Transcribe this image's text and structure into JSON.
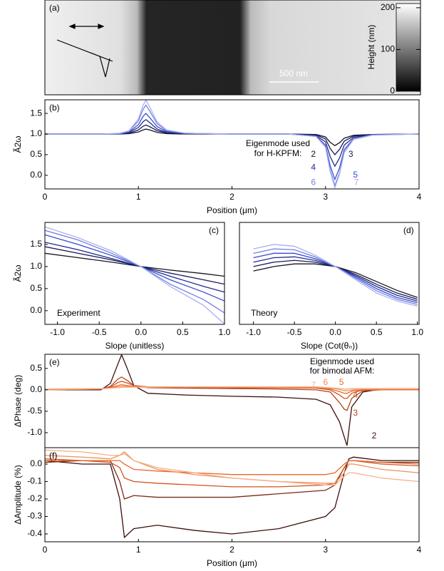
{
  "chart_data": [
    {
      "type": "image",
      "panel_label": "(a)",
      "colorbar_label": "Height (nm)",
      "clim": [
        0,
        210
      ],
      "cticks": [
        0,
        100,
        200
      ],
      "scale_bar": "500 nm"
    },
    {
      "type": "line",
      "panel_label": "(b)",
      "ylabel": "Ã2ω",
      "xlabel": "Position (μm)",
      "annotation": [
        "Eigenmode used",
        "for H-KPFM:"
      ],
      "xlim": [
        0,
        4
      ],
      "ylim": [
        -0.33,
        1.83
      ],
      "xticks": [
        0,
        1,
        2,
        3,
        4
      ],
      "yticks": [
        {
          "value": 0,
          "label": "0.0"
        },
        0.5,
        {
          "value": 1,
          "label": "1.0"
        },
        1.5
      ],
      "x": [
        0,
        0.6,
        0.8,
        0.9,
        1.0,
        1.05,
        1.08,
        1.12,
        1.2,
        1.3,
        1.5,
        2.0,
        2.6,
        2.9,
        3.0,
        3.05,
        3.1,
        3.15,
        3.2,
        3.3,
        3.5,
        4.0
      ],
      "series": [
        {
          "name": "2",
          "color": "#15151f",
          "values": [
            1,
            1,
            1,
            1.01,
            1.05,
            1.1,
            1.12,
            1.1,
            1.04,
            1.01,
            1,
            1,
            1,
            0.99,
            0.93,
            0.8,
            0.72,
            0.79,
            0.9,
            0.97,
            0.99,
            1
          ]
        },
        {
          "name": "3",
          "color": "#1a1a5e",
          "values": [
            1,
            1,
            1,
            1.02,
            1.1,
            1.19,
            1.22,
            1.18,
            1.08,
            1.03,
            1.01,
            1,
            1,
            0.98,
            0.88,
            0.65,
            0.5,
            0.63,
            0.83,
            0.95,
            0.99,
            1
          ]
        },
        {
          "name": "4",
          "color": "#1f2a8c",
          "values": [
            1,
            1,
            1.01,
            1.04,
            1.16,
            1.3,
            1.35,
            1.28,
            1.12,
            1.04,
            1.01,
            1,
            1,
            0.96,
            0.81,
            0.45,
            0.22,
            0.42,
            0.73,
            0.92,
            0.98,
            1
          ]
        },
        {
          "name": "5",
          "color": "#3a4ad0",
          "values": [
            1,
            1,
            1.01,
            1.05,
            1.23,
            1.43,
            1.5,
            1.4,
            1.18,
            1.06,
            1.02,
            1,
            1,
            0.95,
            0.73,
            0.23,
            -0.1,
            0.18,
            0.62,
            0.89,
            0.98,
            1
          ]
        },
        {
          "name": "6",
          "color": "#7080e0",
          "values": [
            1,
            1,
            1.01,
            1.07,
            1.32,
            1.6,
            1.7,
            1.56,
            1.25,
            1.08,
            1.02,
            1,
            1,
            0.94,
            0.69,
            0.13,
            -0.25,
            0.06,
            0.56,
            0.88,
            0.98,
            1
          ]
        },
        {
          "name": "7",
          "color": "#a8b0ee",
          "values": [
            1,
            1,
            1.02,
            1.08,
            1.37,
            1.7,
            1.82,
            1.66,
            1.29,
            1.1,
            1.02,
            1,
            1,
            0.94,
            0.68,
            0.09,
            -0.3,
            0.03,
            0.55,
            0.87,
            0.97,
            1
          ]
        }
      ]
    },
    {
      "type": "line",
      "panel_label": "(c)",
      "ylabel": "Ã2ω",
      "xlabel": "Slope (unitless)",
      "annotation": [
        "Experiment"
      ],
      "xlim": [
        -1.15,
        1.0
      ],
      "ylim": [
        -0.31,
        2.0
      ],
      "xticks": [
        {
          "value": -1,
          "label": "-1.0"
        },
        -0.5,
        {
          "value": 0,
          "label": "0.0"
        },
        0.5,
        {
          "value": 1,
          "label": "1.0"
        }
      ],
      "yticks": [
        {
          "value": 0,
          "label": "0.0"
        },
        0.5,
        {
          "value": 1,
          "label": "1.0"
        },
        1.5
      ],
      "x": [
        -1.15,
        -0.75,
        -0.35,
        0,
        0.35,
        0.75,
        1.0
      ],
      "series": [
        {
          "color": "#15151f",
          "values": [
            1.3,
            1.2,
            1.1,
            1,
            0.92,
            0.84,
            0.78
          ]
        },
        {
          "color": "#1a1a5e",
          "values": [
            1.45,
            1.3,
            1.15,
            1,
            0.85,
            0.7,
            0.6
          ]
        },
        {
          "color": "#1f2a8c",
          "values": [
            1.55,
            1.38,
            1.18,
            1,
            0.78,
            0.55,
            0.42
          ]
        },
        {
          "color": "#3a4ad0",
          "values": [
            1.72,
            1.5,
            1.25,
            1,
            0.7,
            0.42,
            0.22
          ]
        },
        {
          "color": "#7080e0",
          "values": [
            1.82,
            1.6,
            1.3,
            1,
            0.6,
            0.25,
            -0.05
          ]
        },
        {
          "color": "#a8b0ee",
          "values": [
            1.9,
            1.65,
            1.35,
            1,
            0.55,
            0.12,
            -0.3
          ]
        }
      ]
    },
    {
      "type": "line",
      "panel_label": "(d)",
      "xlabel": "Slope (Cot(θₙ))",
      "annotation": [
        "Theory"
      ],
      "xlim": [
        -1.17,
        1.02
      ],
      "ylim": [
        -0.31,
        2.0
      ],
      "xticks": [
        {
          "value": -1,
          "label": "-1.0"
        },
        -0.5,
        {
          "value": 0,
          "label": "0.0"
        },
        0.5,
        {
          "value": 1,
          "label": "1.0"
        }
      ],
      "x": [
        -1,
        -0.75,
        -0.5,
        -0.25,
        0,
        0.25,
        0.5,
        0.75,
        1
      ],
      "series": [
        {
          "color": "#15151f",
          "values": [
            0.9,
            1.0,
            1.06,
            1.06,
            1.0,
            0.86,
            0.66,
            0.46,
            0.3
          ]
        },
        {
          "color": "#1a1a5e",
          "values": [
            1.0,
            1.1,
            1.14,
            1.1,
            1.0,
            0.82,
            0.6,
            0.4,
            0.26
          ]
        },
        {
          "color": "#1f2a8c",
          "values": [
            1.1,
            1.2,
            1.22,
            1.14,
            1.0,
            0.79,
            0.55,
            0.35,
            0.22
          ]
        },
        {
          "color": "#3a4ad0",
          "values": [
            1.2,
            1.3,
            1.3,
            1.18,
            1.0,
            0.76,
            0.5,
            0.3,
            0.18
          ]
        },
        {
          "color": "#7080e0",
          "values": [
            1.3,
            1.4,
            1.38,
            1.22,
            1.0,
            0.73,
            0.45,
            0.26,
            0.14
          ]
        },
        {
          "color": "#a8b0ee",
          "values": [
            1.4,
            1.5,
            1.46,
            1.26,
            1.0,
            0.7,
            0.4,
            0.22,
            0.1
          ]
        }
      ]
    },
    {
      "type": "line",
      "panel_label": "(e)",
      "ylabel": "ΔPhase (deg)",
      "annotation": [
        "Eigenmode used",
        "for bimodal AFM:"
      ],
      "xlim": [
        0,
        4
      ],
      "ylim": [
        -1.35,
        0.83
      ],
      "yticks": [
        {
          "value": -1,
          "label": "-1.0"
        },
        -0.5,
        {
          "value": 0,
          "label": "0.0"
        },
        0.5
      ],
      "x": [
        0,
        0.6,
        0.7,
        0.78,
        0.82,
        0.88,
        0.95,
        1.1,
        1.5,
        2.0,
        2.5,
        2.9,
        3.05,
        3.15,
        3.2,
        3.23,
        3.28,
        3.4,
        3.6,
        4.0
      ],
      "series": [
        {
          "name": "2",
          "color": "#3b0f0a",
          "values": [
            0,
            0,
            0.15,
            0.6,
            0.82,
            0.5,
            0.1,
            -0.08,
            -0.12,
            -0.15,
            -0.17,
            -0.22,
            -0.35,
            -0.75,
            -1.1,
            -1.3,
            -0.4,
            -0.05,
            0.02,
            0.02
          ]
        },
        {
          "name": "3",
          "color": "#b5411a",
          "values": [
            0,
            0.02,
            0.08,
            0.25,
            0.3,
            0.22,
            0.1,
            0.05,
            0.04,
            0.03,
            0.02,
            0,
            -0.05,
            -0.3,
            -0.45,
            -0.48,
            -0.2,
            -0.02,
            0,
            0
          ]
        },
        {
          "name": "4",
          "color": "#d2531f",
          "values": [
            0,
            0.02,
            0.06,
            0.17,
            0.2,
            0.16,
            0.1,
            0.07,
            0.06,
            0.05,
            0.05,
            0.04,
            0,
            -0.12,
            -0.2,
            -0.2,
            -0.08,
            0,
            0,
            0
          ]
        },
        {
          "name": "5",
          "color": "#e8682a",
          "values": [
            0,
            0.02,
            0.05,
            0.1,
            0.12,
            0.1,
            0.08,
            0.07,
            0.07,
            0.06,
            0.06,
            0.05,
            0.02,
            -0.04,
            -0.08,
            -0.08,
            -0.03,
            0,
            0,
            0
          ]
        },
        {
          "name": "6",
          "color": "#f0905a",
          "values": [
            0,
            0.02,
            0.04,
            0.07,
            0.08,
            0.08,
            0.07,
            0.07,
            0.07,
            0.07,
            0.07,
            0.06,
            0.04,
            0.01,
            -0.02,
            -0.02,
            0,
            0.02,
            0.02,
            0.02
          ]
        },
        {
          "name": "7",
          "color": "#f5b08a",
          "values": [
            0.02,
            0.03,
            0.04,
            0.05,
            0.06,
            0.06,
            0.06,
            0.06,
            0.07,
            0.07,
            0.07,
            0.07,
            0.05,
            0.03,
            0.02,
            0.02,
            0.03,
            0.03,
            0.03,
            0.03
          ]
        }
      ]
    },
    {
      "type": "line",
      "panel_label": "(f)",
      "ylabel": "ΔAmplitude (%)",
      "xlabel": "Position (μm)",
      "xlim": [
        0,
        4
      ],
      "ylim": [
        -0.445,
        0.094
      ],
      "xticks": [
        0,
        1,
        2,
        3,
        4
      ],
      "yticks": [
        -0.4,
        -0.3,
        -0.2,
        -0.1,
        {
          "value": 0,
          "label": "0.0"
        }
      ],
      "x": [
        0,
        0.4,
        0.7,
        0.8,
        0.85,
        0.95,
        1.2,
        1.6,
        2.0,
        2.5,
        3.0,
        3.1,
        3.2,
        3.25,
        3.3,
        3.6,
        4.0
      ],
      "series": [
        {
          "color": "#3b0f0a",
          "values": [
            0.02,
            0,
            0,
            -0.2,
            -0.42,
            -0.37,
            -0.35,
            -0.38,
            -0.4,
            -0.37,
            -0.3,
            -0.25,
            -0.05,
            0.03,
            0.04,
            0.02,
            0.02
          ]
        },
        {
          "color": "#7a2a12",
          "values": [
            0.01,
            0.02,
            0.02,
            -0.1,
            -0.2,
            -0.18,
            -0.19,
            -0.19,
            -0.19,
            -0.17,
            -0.15,
            -0.12,
            -0.02,
            0.02,
            0.02,
            0.01,
            0.01
          ]
        },
        {
          "color": "#d2531f",
          "values": [
            0.03,
            0.02,
            0.01,
            -0.02,
            -0.08,
            -0.1,
            -0.11,
            -0.12,
            -0.13,
            -0.13,
            -0.12,
            -0.11,
            -0.02,
            0.02,
            0.02,
            0,
            -0.01
          ]
        },
        {
          "color": "#e8682a",
          "values": [
            0.02,
            0.02,
            0.02,
            0.02,
            0,
            -0.03,
            -0.04,
            -0.05,
            -0.06,
            -0.06,
            -0.06,
            -0.05,
            0,
            0.02,
            0.02,
            0.01,
            0
          ]
        },
        {
          "color": "#f0905a",
          "values": [
            0.05,
            0.04,
            0.03,
            0.05,
            0.07,
            0.02,
            -0.03,
            -0.06,
            -0.08,
            -0.1,
            -0.11,
            -0.11,
            -0.05,
            0,
            0,
            -0.03,
            -0.05
          ]
        },
        {
          "color": "#f5b08a",
          "values": [
            0.08,
            0.07,
            0.05,
            0.05,
            0.06,
            0.02,
            -0.02,
            -0.05,
            -0.08,
            -0.1,
            -0.12,
            -0.12,
            -0.07,
            -0.05,
            -0.05,
            -0.08,
            -0.1
          ]
        }
      ]
    }
  ]
}
